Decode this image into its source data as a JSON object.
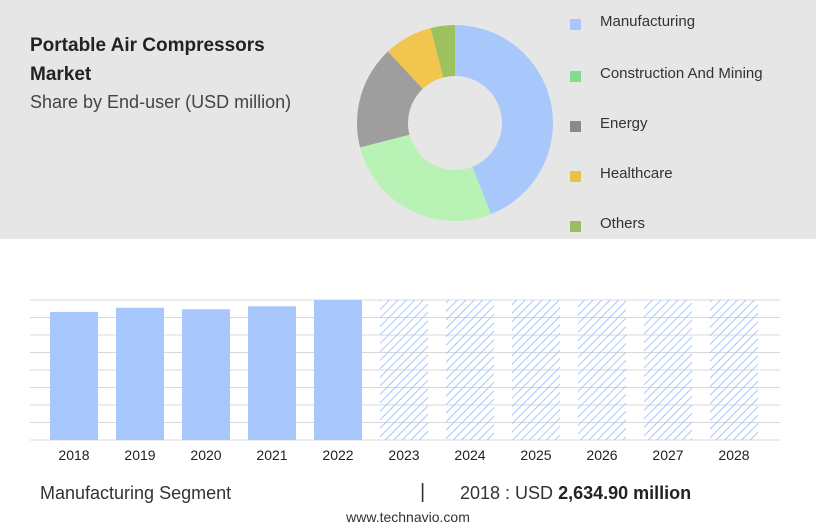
{
  "header": {
    "title": "Portable Air Compressors Market",
    "subtitle": "Share by End-user (USD million)"
  },
  "donut": {
    "segments": [
      {
        "label": "Manufacturing",
        "share": 0.44,
        "color": "#a8c8fb"
      },
      {
        "label": "Construction And Mining",
        "share": 0.27,
        "color": "#b8f2b4"
      },
      {
        "label": "Energy",
        "share": 0.17,
        "color": "#9e9e9e"
      },
      {
        "label": "Healthcare",
        "share": 0.08,
        "color": "#f1c54e"
      },
      {
        "label": "Others",
        "share": 0.04,
        "color": "#9dc25d"
      }
    ]
  },
  "legend": [
    {
      "label": "Manufacturing",
      "color": "#a8c8fb"
    },
    {
      "label": "Construction And Mining",
      "color": "#7ee08f"
    },
    {
      "label": "Energy",
      "color": "#8a8a8a"
    },
    {
      "label": "Healthcare",
      "color": "#e8c14a"
    },
    {
      "label": "Others",
      "color": "#9dbb5f"
    }
  ],
  "chart_data": {
    "type": "bar",
    "categories": [
      "2018",
      "2019",
      "2020",
      "2021",
      "2022",
      "2023",
      "2024",
      "2025",
      "2026",
      "2027",
      "2028"
    ],
    "values": [
      2634.9,
      2720,
      2690,
      2750,
      2880,
      2880,
      2880,
      2880,
      2880,
      2880,
      2880
    ],
    "forecast_start_index": 5,
    "bar_color": "#a8c8fb",
    "forecast_hatch_color": "#a8c8fb",
    "ylim": [
      0,
      2880
    ],
    "grid": true,
    "title": "",
    "xlabel": "",
    "ylabel": ""
  },
  "footer": {
    "segment": "Manufacturing Segment",
    "divider": "|",
    "value_prefix": "2018 : USD",
    "value": "2,634.90 million",
    "url": "www.technavio.com"
  }
}
